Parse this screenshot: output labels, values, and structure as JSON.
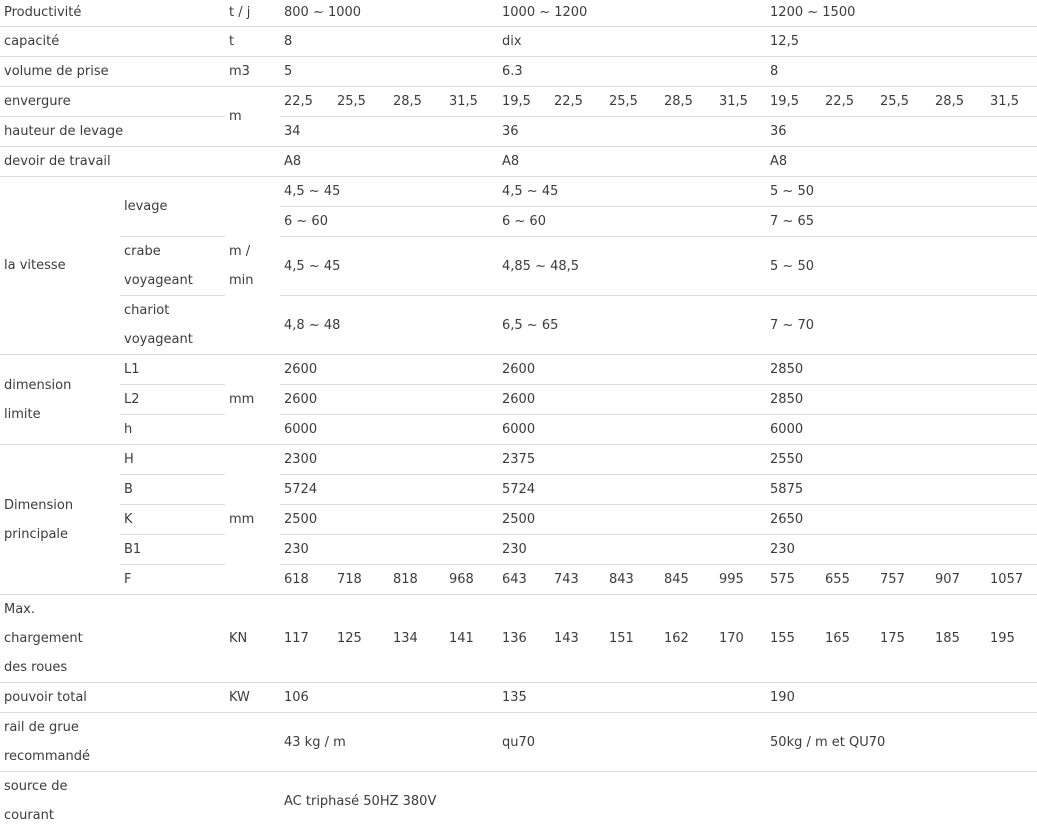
{
  "rows": {
    "productivity": {
      "label": "Productivité",
      "unit": "t / j",
      "values": [
        "800 ~ 1000",
        "1000 ~ 1200",
        "1200 ~ 1500"
      ]
    },
    "capacity": {
      "label": "capacité",
      "unit": "t",
      "values": [
        "8",
        "dix",
        "12,5"
      ]
    },
    "grab_volume": {
      "label": "volume de prise",
      "unit": "m3",
      "values": [
        "5",
        "6.3",
        "8"
      ]
    },
    "span": {
      "label": "envergure",
      "unit": "m",
      "values": [
        "22,5",
        "25,5",
        "28,5",
        "31,5",
        "19,5",
        "22,5",
        "25,5",
        "28,5",
        "31,5",
        "19,5",
        "22,5",
        "25,5",
        "28,5",
        "31,5"
      ]
    },
    "lift_height": {
      "label": "hauteur de levage",
      "values": [
        "34",
        "36",
        "36"
      ]
    },
    "duty": {
      "label": "devoir de travail",
      "values": [
        "A8",
        "A8",
        "A8"
      ]
    },
    "speed": {
      "label": "la vitesse",
      "unit_line1": "m /",
      "unit_line2": "min",
      "hoist_label": "levage",
      "hoist_values_1": [
        "4,5 ~ 45",
        "4,5 ~ 45",
        "5 ~ 50"
      ],
      "hoist_values_2": [
        "6 ~ 60",
        "6 ~ 60",
        "7 ~ 65"
      ],
      "crab_label_1": "crabe",
      "crab_label_2": "voyageant",
      "crab_values": [
        "4,5 ~ 45",
        "4,85 ~ 48,5",
        "5 ~ 50"
      ],
      "trolley_label_1": "chariot",
      "trolley_label_2": "voyageant",
      "trolley_values": [
        "4,8 ~ 48",
        "6,5 ~ 65",
        "7 ~ 70"
      ]
    },
    "limit_dim": {
      "label_1": "dimension",
      "label_2": "limite",
      "unit": "mm",
      "l1": {
        "label": "L1",
        "values": [
          "2600",
          "2600",
          "2850"
        ]
      },
      "l2": {
        "label": "L2",
        "values": [
          "2600",
          "2600",
          "2850"
        ]
      },
      "h": {
        "label": "h",
        "values": [
          "6000",
          "6000",
          "6000"
        ]
      }
    },
    "main_dim": {
      "label_1": "Dimension",
      "label_2": "principale",
      "unit": "mm",
      "H": {
        "label": "H",
        "values": [
          "2300",
          "2375",
          "2550"
        ]
      },
      "B": {
        "label": "B",
        "values": [
          "5724",
          "5724",
          "5875"
        ]
      },
      "K": {
        "label": "K",
        "values": [
          "2500",
          "2500",
          "2650"
        ]
      },
      "B1": {
        "label": "B1",
        "values": [
          "230",
          "230",
          "230"
        ]
      },
      "F": {
        "label": "F",
        "values": [
          "618",
          "718",
          "818",
          "968",
          "643",
          "743",
          "843",
          "845",
          "995",
          "575",
          "655",
          "757",
          "907",
          "1057"
        ]
      }
    },
    "wheel_load": {
      "label_1": "Max.",
      "label_2": "chargement",
      "label_3": "des roues",
      "unit": "KN",
      "values": [
        "117",
        "125",
        "134",
        "141",
        "136",
        "143",
        "151",
        "162",
        "170",
        "155",
        "165",
        "175",
        "185",
        "195"
      ]
    },
    "total_power": {
      "label": "pouvoir total",
      "unit": "KW",
      "values": [
        "106",
        "135",
        "190"
      ]
    },
    "rail": {
      "label_1": "rail de grue",
      "label_2": "recommandé",
      "values": [
        "43 kg / m",
        "qu70",
        "50kg / m et QU70"
      ]
    },
    "power_source": {
      "label_1": "source de",
      "label_2": "courant",
      "value": "AC triphasé 50HZ 380V"
    }
  }
}
